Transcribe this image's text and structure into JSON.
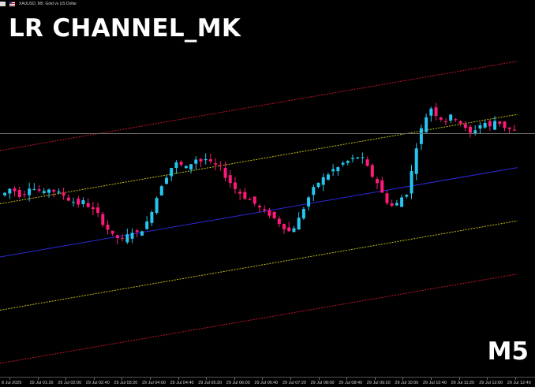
{
  "chart_window": {
    "symbol_title": "XAUUSD, M5:  Gold vs US Dollar",
    "indicator_title": "LR CHANNEL_MK",
    "timeframe": "M5",
    "icons": [
      "xau-flag-icon",
      "usd-flag-icon"
    ]
  },
  "colors": {
    "background": "#000000",
    "bull_candle": "#26c6f0",
    "bear_candle": "#ff1a7a",
    "outer_channel": "#c4162a",
    "inner_channel": "#c9c21a",
    "regression_line": "#2a2ad8",
    "price_line": "#6f6f6f"
  },
  "chart_data": {
    "type": "candlestick",
    "title": "LR CHANNEL_MK",
    "xlabel": "",
    "ylabel": "",
    "x_ticks": [
      "8 Jul 2025",
      "29 Jul 01:20",
      "29 Jul 02:00",
      "29 Jul 02:40",
      "29 Jul 03:20",
      "29 Jul 04:00",
      "29 Jul 04:40",
      "29 Jul 05:20",
      "29 Jul 06:00",
      "29 Jul 06:40",
      "29 Jul 07:20",
      "29 Jul 08:00",
      "29 Jul 08:40",
      "29 Jul 09:20",
      "29 Jul 10:00",
      "29 Jul 10:40",
      "29 Jul 11:20",
      "29 Jul 12:00",
      "29 Jul 12:40"
    ],
    "y_range_normalized": [
      0,
      100
    ],
    "close_path": [
      50,
      52,
      51,
      49,
      50,
      53,
      52,
      51,
      50,
      52,
      51,
      50,
      49,
      47,
      46,
      45,
      46,
      44,
      42,
      40,
      36,
      33,
      30,
      29,
      28,
      30,
      32,
      31,
      33,
      36,
      42,
      48,
      54,
      58,
      62,
      64,
      63,
      62,
      64,
      66,
      65,
      66,
      64,
      63,
      62,
      58,
      55,
      52,
      50,
      48,
      47,
      45,
      43,
      41,
      40,
      38,
      36,
      34,
      32,
      34,
      38,
      43,
      48,
      52,
      55,
      57,
      59,
      61,
      62,
      64,
      65,
      66,
      67,
      66,
      62,
      58,
      55,
      50,
      46,
      44,
      45,
      48,
      50,
      60,
      72,
      80,
      86,
      90,
      87,
      85,
      84,
      86,
      85,
      83,
      80,
      78,
      80,
      82,
      83,
      81,
      84,
      83,
      81,
      80,
      79
    ],
    "regression_channel": {
      "regression_line": [
        20,
        62
      ],
      "inner_upper": [
        45,
        87
      ],
      "inner_lower": [
        -5,
        37
      ],
      "outer_upper": [
        70,
        112
      ],
      "outer_lower": [
        -30,
        12
      ]
    },
    "price_line_level": 84
  }
}
